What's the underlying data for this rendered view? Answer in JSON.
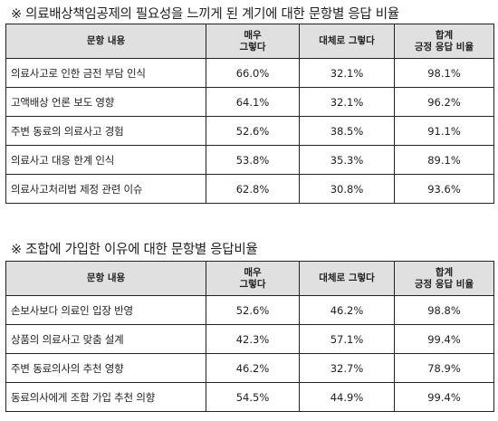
{
  "section1": {
    "title": "※ 의료배상책임공제의 필요성을 느끼게 된 계기에 대한 문항별 응답 비율",
    "headers": {
      "item": "문항 내용",
      "very": [
        "매우",
        "그렇다"
      ],
      "mostly": "대체로 그렇다",
      "total": [
        "합계",
        "긍정 응답 비율"
      ]
    },
    "rows": [
      {
        "item": "의료사고로 인한 금전 부담 인식",
        "very": "66.0%",
        "mostly": "32.1%",
        "total": "98.1%"
      },
      {
        "item": "고액배상 언론 보도 영향",
        "very": "64.1%",
        "mostly": "32.1%",
        "total": "96.2%"
      },
      {
        "item": "주변 동료의 의료사고 경험",
        "very": "52.6%",
        "mostly": "38.5%",
        "total": "91.1%"
      },
      {
        "item": "의료사고 대응 한계 인식",
        "very": "53.8%",
        "mostly": "35.3%",
        "total": "89.1%"
      },
      {
        "item": "의료사고처리법 제정 관련 이슈",
        "very": "62.8%",
        "mostly": "30.8%",
        "total": "93.6%"
      }
    ]
  },
  "section2": {
    "title": "※ 조합에 가입한 이유에 대한 문항별 응답비율",
    "headers": {
      "item": "문항 내용",
      "very": [
        "매우",
        "그렇다"
      ],
      "mostly": "대체로 그렇다",
      "total": [
        "합계",
        "긍정 응답 비율"
      ]
    },
    "rows": [
      {
        "item": "손보사보다 의료인 입장 반영",
        "very": "52.6%",
        "mostly": "46.2%",
        "total": "98.8%"
      },
      {
        "item": "상품의 의료사고 맞춤 설계",
        "very": "42.3%",
        "mostly": "57.1%",
        "total": "99.4%"
      },
      {
        "item": "주변 동료의사의 추천 영향",
        "very": "46.2%",
        "mostly": "32.7%",
        "total": "78.9%"
      },
      {
        "item": "동료의사에게 조합 가입 추천 의향",
        "very": "54.5%",
        "mostly": "44.9%",
        "total": "99.4%"
      }
    ]
  }
}
